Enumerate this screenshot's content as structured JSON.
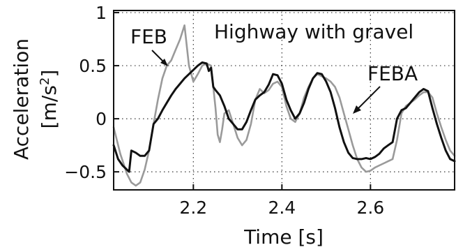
{
  "chart_data": {
    "type": "line",
    "title": "",
    "xlabel": "Time [s]",
    "ylabel": "Acceleration",
    "ylabel_unit": "[m/s",
    "ylabel_unit_sup": "2",
    "ylabel_unit_close": "]",
    "xlim": [
      2.02,
      2.79
    ],
    "ylim": [
      -0.67,
      1.02
    ],
    "xticks": [
      2.2,
      2.4,
      2.6
    ],
    "xtick_labels": [
      "2.2",
      "2.4",
      "2.6"
    ],
    "yticks": [
      -0.5,
      0,
      0.5,
      1
    ],
    "ytick_labels": [
      "−0.5",
      "0",
      "0.5",
      "1"
    ],
    "grid": true,
    "annotations": {
      "condition": "Highway with gravel",
      "feb": "FEB",
      "feba": "FEBA"
    },
    "series": [
      {
        "name": "FEB",
        "color": "#9a9a9a",
        "x": [
          2.02,
          2.035,
          2.05,
          2.06,
          2.07,
          2.08,
          2.09,
          2.1,
          2.11,
          2.12,
          2.13,
          2.14,
          2.15,
          2.16,
          2.17,
          2.18,
          2.19,
          2.2,
          2.21,
          2.22,
          2.23,
          2.24,
          2.245,
          2.25,
          2.255,
          2.26,
          2.265,
          2.27,
          2.28,
          2.29,
          2.3,
          2.31,
          2.32,
          2.33,
          2.34,
          2.35,
          2.36,
          2.37,
          2.38,
          2.39,
          2.4,
          2.41,
          2.42,
          2.43,
          2.44,
          2.45,
          2.46,
          2.47,
          2.48,
          2.49,
          2.5,
          2.51,
          2.52,
          2.53,
          2.54,
          2.55,
          2.56,
          2.57,
          2.58,
          2.59,
          2.6,
          2.61,
          2.62,
          2.63,
          2.64,
          2.65,
          2.66,
          2.67,
          2.68,
          2.69,
          2.7,
          2.71,
          2.72,
          2.73,
          2.74,
          2.75,
          2.76,
          2.77,
          2.78,
          2.79
        ],
        "y": [
          -0.08,
          -0.33,
          -0.52,
          -0.6,
          -0.63,
          -0.6,
          -0.48,
          -0.3,
          -0.05,
          0.18,
          0.38,
          0.5,
          0.55,
          0.65,
          0.75,
          0.88,
          0.5,
          0.35,
          0.42,
          0.5,
          0.52,
          0.5,
          0.3,
          0.1,
          -0.15,
          -0.22,
          -0.1,
          0.05,
          0.08,
          -0.05,
          -0.18,
          -0.25,
          -0.2,
          -0.05,
          0.18,
          0.28,
          0.24,
          0.27,
          0.33,
          0.35,
          0.3,
          0.12,
          0.0,
          -0.03,
          0.05,
          0.2,
          0.3,
          0.38,
          0.42,
          0.4,
          0.38,
          0.35,
          0.3,
          0.2,
          0.05,
          -0.1,
          -0.25,
          -0.38,
          -0.46,
          -0.5,
          -0.49,
          -0.46,
          -0.44,
          -0.42,
          -0.4,
          -0.38,
          -0.2,
          0.05,
          0.12,
          0.15,
          0.18,
          0.22,
          0.25,
          0.25,
          0.2,
          0.05,
          -0.08,
          -0.2,
          -0.3,
          -0.35
        ]
      },
      {
        "name": "FEBA",
        "color": "#111111",
        "x": [
          2.02,
          2.03,
          2.04,
          2.05,
          2.055,
          2.06,
          2.07,
          2.08,
          2.09,
          2.1,
          2.11,
          2.12,
          2.13,
          2.14,
          2.15,
          2.16,
          2.17,
          2.18,
          2.19,
          2.2,
          2.21,
          2.22,
          2.23,
          2.235,
          2.24,
          2.245,
          2.25,
          2.26,
          2.27,
          2.28,
          2.29,
          2.3,
          2.31,
          2.32,
          2.33,
          2.34,
          2.35,
          2.36,
          2.37,
          2.38,
          2.39,
          2.4,
          2.41,
          2.42,
          2.43,
          2.44,
          2.45,
          2.46,
          2.47,
          2.48,
          2.49,
          2.5,
          2.51,
          2.52,
          2.53,
          2.54,
          2.55,
          2.56,
          2.57,
          2.58,
          2.59,
          2.6,
          2.61,
          2.62,
          2.63,
          2.64,
          2.65,
          2.66,
          2.67,
          2.68,
          2.69,
          2.7,
          2.71,
          2.72,
          2.73,
          2.74,
          2.75,
          2.76,
          2.77,
          2.78,
          2.79
        ],
        "y": [
          -0.25,
          -0.38,
          -0.44,
          -0.48,
          -0.5,
          -0.3,
          -0.32,
          -0.35,
          -0.35,
          -0.3,
          -0.05,
          0.0,
          0.08,
          0.15,
          0.22,
          0.28,
          0.33,
          0.38,
          0.42,
          0.46,
          0.5,
          0.53,
          0.52,
          0.45,
          0.48,
          0.3,
          0.27,
          0.22,
          0.12,
          0.0,
          -0.05,
          -0.1,
          -0.1,
          -0.03,
          0.08,
          0.18,
          0.22,
          0.25,
          0.32,
          0.42,
          0.41,
          0.33,
          0.18,
          0.08,
          0.0,
          0.05,
          0.15,
          0.28,
          0.38,
          0.43,
          0.42,
          0.35,
          0.25,
          0.1,
          -0.08,
          -0.22,
          -0.32,
          -0.37,
          -0.38,
          -0.38,
          -0.37,
          -0.38,
          -0.36,
          -0.33,
          -0.28,
          -0.25,
          -0.22,
          0.0,
          0.08,
          0.1,
          0.15,
          0.2,
          0.25,
          0.28,
          0.26,
          0.1,
          -0.05,
          -0.18,
          -0.3,
          -0.38,
          -0.4
        ]
      }
    ]
  }
}
